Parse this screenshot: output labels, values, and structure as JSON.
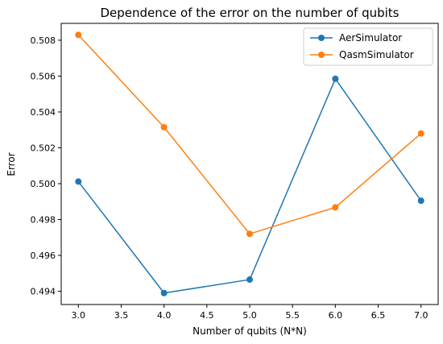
{
  "chart_data": {
    "type": "line",
    "title": "Dependence of the error on the number of qubits",
    "xlabel": "Number of qubits (N*N)",
    "ylabel": "Error",
    "x": [
      3.0,
      4.0,
      5.0,
      6.0,
      7.0
    ],
    "series": [
      {
        "name": "AerSimulator",
        "color": "#1f77b4",
        "values": [
          0.50012,
          0.4939,
          0.49465,
          0.50585,
          0.49905
        ]
      },
      {
        "name": "QasmSimulator",
        "color": "#ff7f0e",
        "values": [
          0.5083,
          0.50315,
          0.4972,
          0.49868,
          0.5028
        ]
      }
    ],
    "xlim": [
      2.8,
      7.2
    ],
    "ylim": [
      0.49326,
      0.50894
    ],
    "x_ticks": [
      3.0,
      3.5,
      4.0,
      4.5,
      5.0,
      5.5,
      6.0,
      6.5,
      7.0
    ],
    "x_tick_labels": [
      "3.0",
      "3.5",
      "4.0",
      "4.5",
      "5.0",
      "5.5",
      "6.0",
      "6.5",
      "7.0"
    ],
    "y_ticks": [
      0.494,
      0.496,
      0.498,
      0.5,
      0.502,
      0.504,
      0.506,
      0.508
    ],
    "y_tick_labels": [
      "0.494",
      "0.496",
      "0.498",
      "0.500",
      "0.502",
      "0.504",
      "0.506",
      "0.508"
    ],
    "grid": false,
    "legend_position": "top-right",
    "marker": "circle"
  }
}
